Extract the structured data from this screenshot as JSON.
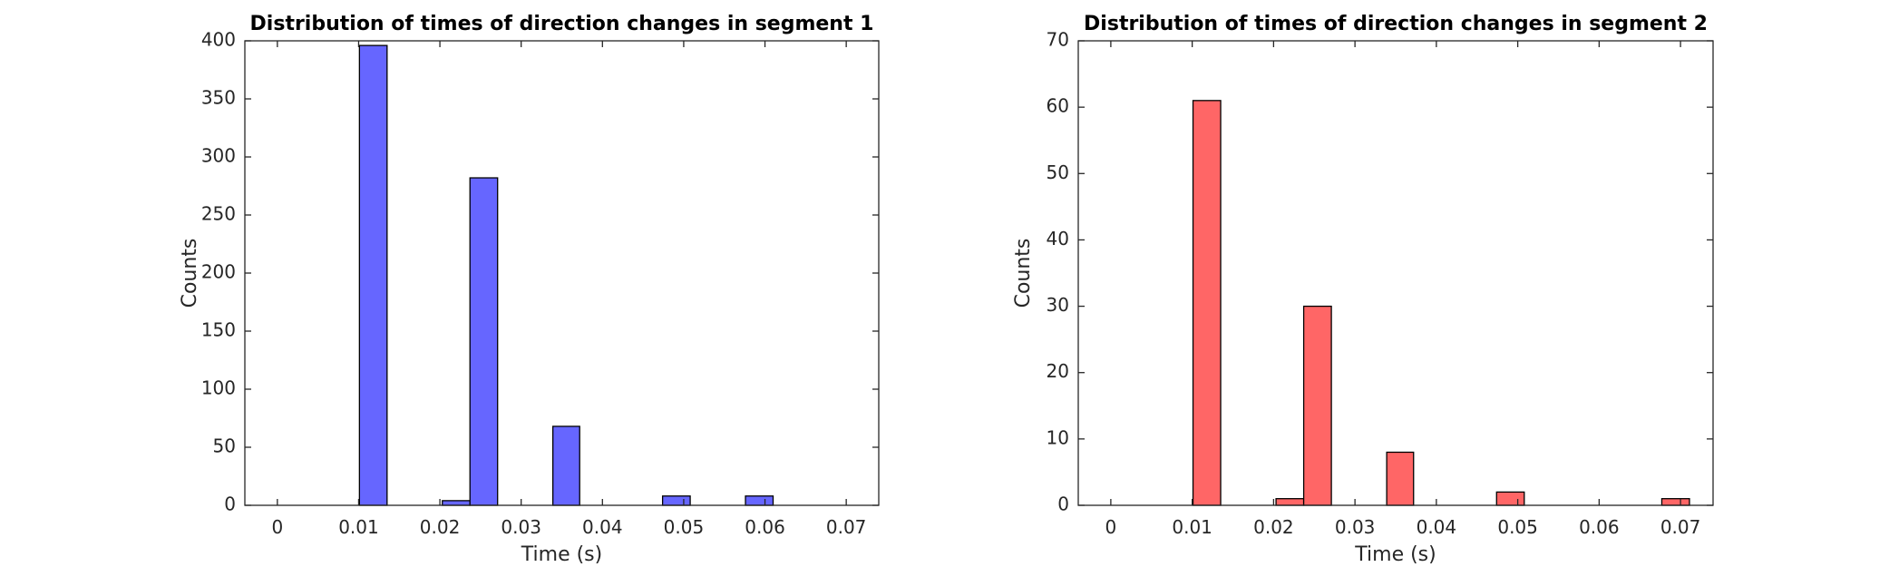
{
  "chart_data": [
    {
      "type": "bar",
      "title": "Distribution of times of direction changes in segment 1",
      "xlabel": "Time (s)",
      "ylabel": "Counts",
      "xlim": [
        -0.004,
        0.074
      ],
      "ylim": [
        0,
        400
      ],
      "xticks": [
        0,
        0.01,
        0.02,
        0.03,
        0.04,
        0.05,
        0.06,
        0.07
      ],
      "xtick_labels": [
        "0",
        "0.01",
        "0.02",
        "0.03",
        "0.04",
        "0.05",
        "0.06",
        "0.07"
      ],
      "yticks": [
        0,
        50,
        100,
        150,
        200,
        250,
        300,
        350,
        400
      ],
      "ytick_labels": [
        "0",
        "50",
        "100",
        "150",
        "200",
        "250",
        "300",
        "350",
        "400"
      ],
      "color": "#6666ff",
      "bins": [
        {
          "start": 0.0101,
          "end": 0.0135,
          "count": 396
        },
        {
          "start": 0.0203,
          "end": 0.0237,
          "count": 4
        },
        {
          "start": 0.0237,
          "end": 0.0271,
          "count": 282
        },
        {
          "start": 0.0339,
          "end": 0.0372,
          "count": 68
        },
        {
          "start": 0.0474,
          "end": 0.0508,
          "count": 8
        },
        {
          "start": 0.0576,
          "end": 0.061,
          "count": 8
        }
      ],
      "grid": false
    },
    {
      "type": "bar",
      "title": "Distribution of times of direction changes in segment 2",
      "xlabel": "Time (s)",
      "ylabel": "Counts",
      "xlim": [
        -0.004,
        0.074
      ],
      "ylim": [
        0,
        70
      ],
      "xticks": [
        0,
        0.01,
        0.02,
        0.03,
        0.04,
        0.05,
        0.06,
        0.07
      ],
      "xtick_labels": [
        "0",
        "0.01",
        "0.02",
        "0.03",
        "0.04",
        "0.05",
        "0.06",
        "0.07"
      ],
      "yticks": [
        0,
        10,
        20,
        30,
        40,
        50,
        60,
        70
      ],
      "ytick_labels": [
        "0",
        "10",
        "20",
        "30",
        "40",
        "50",
        "60",
        "70"
      ],
      "color": "#ff6666",
      "bins": [
        {
          "start": 0.0101,
          "end": 0.0135,
          "count": 61
        },
        {
          "start": 0.0203,
          "end": 0.0237,
          "count": 1
        },
        {
          "start": 0.0237,
          "end": 0.0271,
          "count": 30
        },
        {
          "start": 0.0339,
          "end": 0.0372,
          "count": 8
        },
        {
          "start": 0.0474,
          "end": 0.0508,
          "count": 2
        },
        {
          "start": 0.0677,
          "end": 0.0711,
          "count": 1
        }
      ],
      "grid": false
    }
  ]
}
